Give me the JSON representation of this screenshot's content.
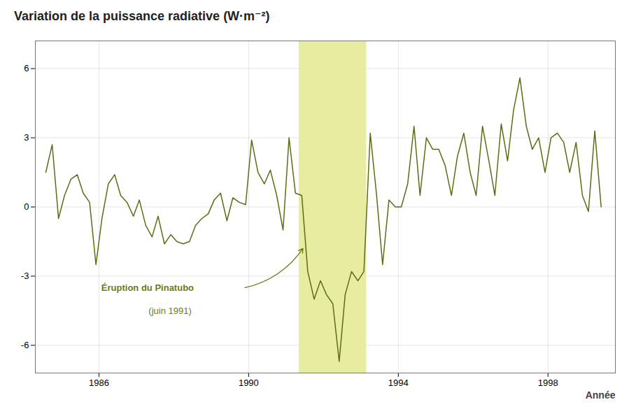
{
  "chart_data": {
    "type": "line",
    "title": "Variation de la puissance radiative (W·m⁻²)",
    "x_label": "Année",
    "xlim": [
      1984.3,
      1999.8
    ],
    "ylim": [
      -7.2,
      7.2
    ],
    "xticks": [
      1986,
      1990,
      1994,
      1998
    ],
    "yticks": [
      -6,
      -3,
      0,
      3,
      6
    ],
    "grid": true,
    "color": "#5c6e14",
    "x": [
      1984.58,
      1984.75,
      1984.92,
      1985.08,
      1985.25,
      1985.42,
      1985.58,
      1985.75,
      1985.92,
      1986.08,
      1986.25,
      1986.42,
      1986.58,
      1986.75,
      1986.92,
      1987.08,
      1987.25,
      1987.42,
      1987.58,
      1987.75,
      1987.92,
      1988.08,
      1988.25,
      1988.42,
      1988.58,
      1988.75,
      1988.92,
      1989.08,
      1989.25,
      1989.42,
      1989.58,
      1989.75,
      1989.92,
      1990.08,
      1990.25,
      1990.42,
      1990.58,
      1990.75,
      1990.92,
      1991.08,
      1991.25,
      1991.42,
      1991.58,
      1991.75,
      1991.92,
      1992.08,
      1992.25,
      1992.42,
      1992.58,
      1992.75,
      1992.92,
      1993.08,
      1993.25,
      1993.42,
      1993.58,
      1993.75,
      1993.92,
      1994.08,
      1994.25,
      1994.42,
      1994.58,
      1994.75,
      1994.92,
      1995.08,
      1995.25,
      1995.42,
      1995.58,
      1995.75,
      1995.92,
      1996.08,
      1996.25,
      1996.42,
      1996.58,
      1996.75,
      1996.92,
      1997.08,
      1997.25,
      1997.42,
      1997.58,
      1997.75,
      1997.92,
      1998.08,
      1998.25,
      1998.42,
      1998.58,
      1998.75,
      1998.92,
      1999.08,
      1999.25,
      1999.42
    ],
    "values": [
      1.5,
      2.7,
      -0.5,
      0.5,
      1.2,
      1.4,
      0.6,
      0.2,
      -2.5,
      -0.5,
      1.0,
      1.4,
      0.5,
      0.2,
      -0.4,
      0.3,
      -0.8,
      -1.3,
      -0.4,
      -1.6,
      -1.2,
      -1.5,
      -1.6,
      -1.5,
      -0.8,
      -0.5,
      -0.3,
      0.3,
      0.6,
      -0.6,
      0.4,
      0.2,
      0.1,
      2.9,
      1.5,
      1.0,
      1.6,
      0.5,
      -1.0,
      3.0,
      0.6,
      0.5,
      -2.8,
      -4.0,
      -3.2,
      -3.8,
      -4.2,
      -6.7,
      -3.8,
      -2.8,
      -3.2,
      -2.8,
      3.2,
      0.5,
      -2.5,
      0.3,
      0.0,
      0.0,
      1.0,
      3.5,
      0.5,
      3.0,
      2.5,
      2.5,
      1.8,
      0.5,
      2.2,
      3.2,
      1.5,
      0.5,
      3.5,
      2.0,
      0.5,
      3.6,
      2.0,
      4.2,
      5.6,
      3.5,
      2.5,
      3.0,
      1.5,
      3.0,
      3.2,
      2.8,
      1.5,
      2.8,
      0.5,
      -0.2,
      3.3,
      0.0
    ],
    "highlight": {
      "x": [
        1991.35,
        1993.15
      ],
      "color": "#e8eca0"
    },
    "annotations": [
      {
        "text": "Éruption du Pinatubo",
        "x": 1987.3,
        "y": -3.5,
        "color": "#6b7a1a"
      },
      {
        "text": "(juin 1991)",
        "x": 1987.9,
        "y": -4.5,
        "color": "#6b7a1a"
      }
    ],
    "arrow": {
      "from": [
        1989.9,
        -3.5
      ],
      "to": [
        1991.45,
        -1.8
      ],
      "color": "#6b7a1a"
    }
  }
}
